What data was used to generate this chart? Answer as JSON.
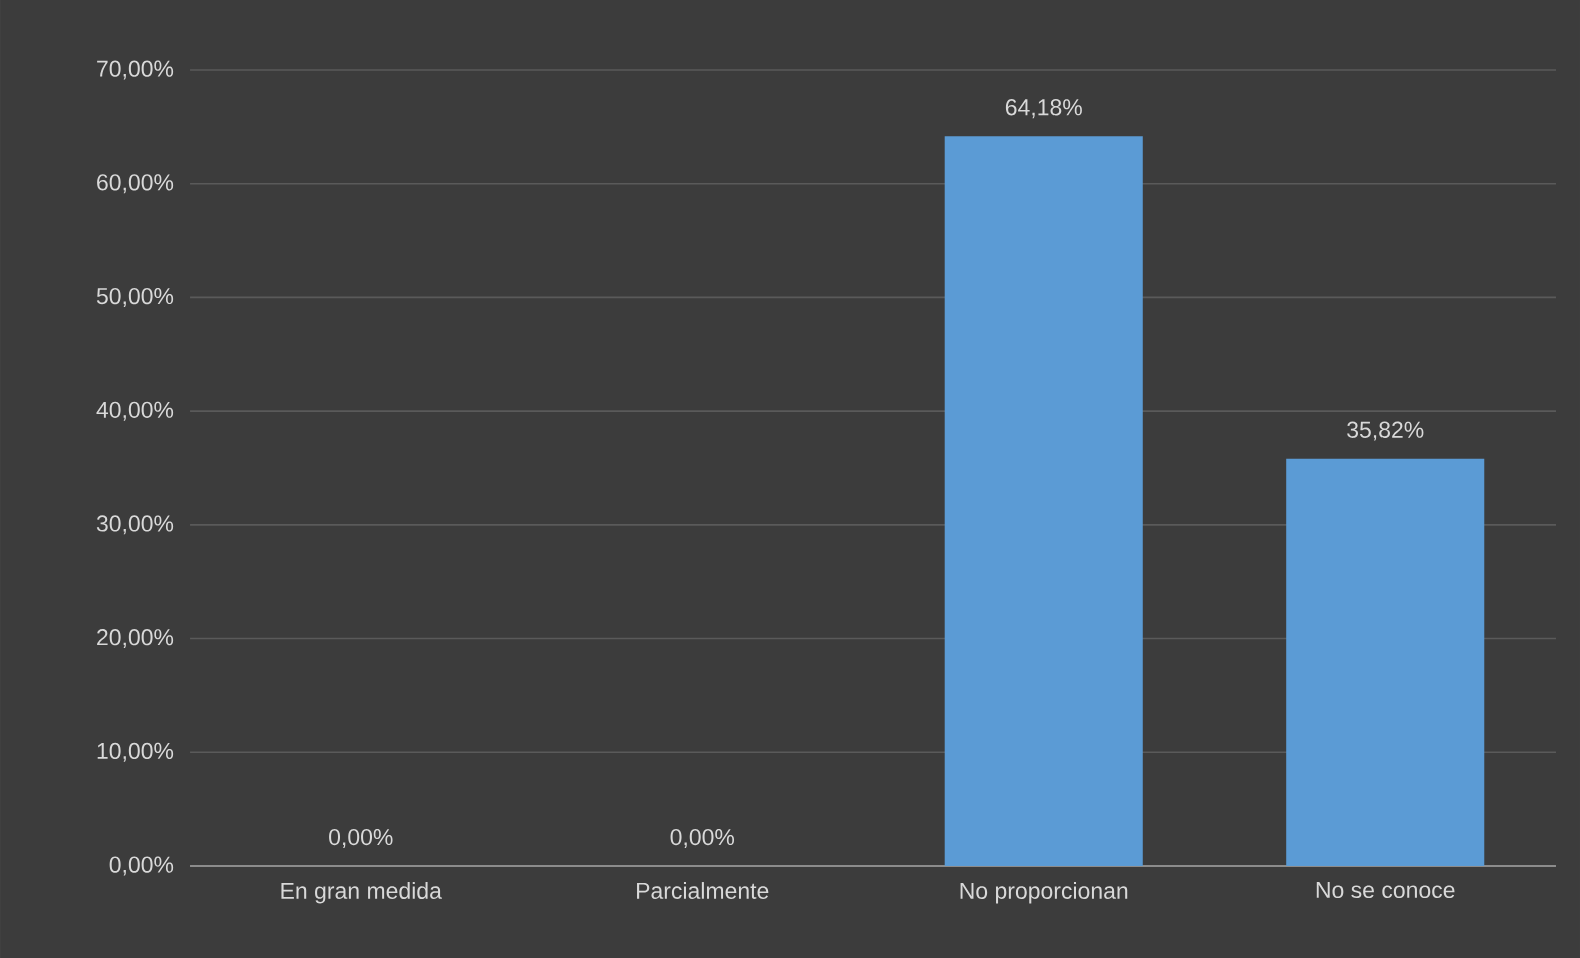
{
  "chart_data": {
    "type": "bar",
    "categories": [
      "En gran medida",
      "Parcialmente",
      "No proporcionan",
      "No se conoce"
    ],
    "values": [
      0,
      0,
      64.18,
      35.82
    ],
    "value_labels": [
      "0,00%",
      "0,00%",
      "64,18%",
      "35,82%"
    ],
    "color": "#5b9bd5",
    "ylim": [
      0,
      70
    ],
    "yticks": [
      {
        "value": 0,
        "label": "0,00%"
      },
      {
        "value": 10,
        "label": "10,00%"
      },
      {
        "value": 20,
        "label": "20,00%"
      },
      {
        "value": 30,
        "label": "30,00%"
      },
      {
        "value": 40,
        "label": "40,00%"
      },
      {
        "value": 50,
        "label": "50,00%"
      },
      {
        "value": 60,
        "label": "60,00%"
      },
      {
        "value": 70,
        "label": "70,00%"
      }
    ],
    "grid": "y"
  }
}
